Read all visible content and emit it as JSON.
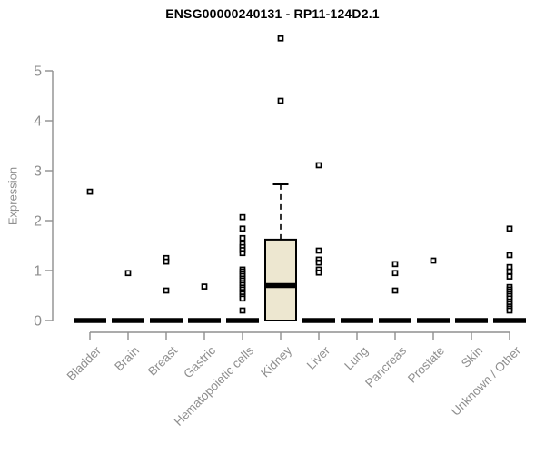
{
  "title": "ENSG00000240131 - RP11-124D2.1",
  "chart_data": {
    "type": "boxplot",
    "title": "ENSG00000240131 - RP11-124D2.1",
    "xlabel": "",
    "ylabel": "Expression",
    "ylim": [
      0,
      5.8
    ],
    "yticks": [
      0,
      1,
      2,
      3,
      4,
      5
    ],
    "grid": false,
    "legend": "none",
    "colors": {
      "box_fill": "#EDE7D0",
      "box_stroke": "#000000",
      "median": "#000000",
      "outlier_stroke": "#000000",
      "axis": "#8f8f8f",
      "tick_label": "#8f8f8f",
      "title_color": "#000000"
    },
    "categories": [
      "Bladder",
      "Brain",
      "Breast",
      "Gastric",
      "Hematopoietic cells",
      "Kidney",
      "Liver",
      "Lung",
      "Pancreas",
      "Prostate",
      "Skin",
      "Unknown / Other"
    ],
    "boxes": [
      {
        "category": "Bladder",
        "q1": 0,
        "median": 0,
        "q3": 0,
        "whisker_low": 0,
        "whisker_high": 0,
        "outliers": [
          2.58
        ]
      },
      {
        "category": "Brain",
        "q1": 0,
        "median": 0,
        "q3": 0,
        "whisker_low": 0,
        "whisker_high": 0,
        "outliers": [
          0.95
        ]
      },
      {
        "category": "Breast",
        "q1": 0,
        "median": 0,
        "q3": 0,
        "whisker_low": 0,
        "whisker_high": 0,
        "outliers": [
          1.25,
          1.18,
          0.6
        ]
      },
      {
        "category": "Gastric",
        "q1": 0,
        "median": 0,
        "q3": 0,
        "whisker_low": 0,
        "whisker_high": 0,
        "outliers": [
          0.68
        ]
      },
      {
        "category": "Hematopoietic cells",
        "q1": 0,
        "median": 0,
        "q3": 0,
        "whisker_low": 0,
        "whisker_high": 0,
        "outliers": [
          2.07,
          1.84,
          1.65,
          1.53,
          1.47,
          1.41,
          1.35,
          1.02,
          0.98,
          0.93,
          0.89,
          0.84,
          0.8,
          0.75,
          0.71,
          0.66,
          0.62,
          0.57,
          0.53,
          0.48,
          0.44,
          0.2
        ]
      },
      {
        "category": "Kidney",
        "q1": 0,
        "median": 0.7,
        "q3": 1.62,
        "whisker_low": 0,
        "whisker_high": 2.73,
        "outliers": [
          5.65,
          4.4
        ]
      },
      {
        "category": "Liver",
        "q1": 0,
        "median": 0,
        "q3": 0,
        "whisker_low": 0,
        "whisker_high": 0,
        "outliers": [
          3.11,
          1.4,
          1.22,
          1.16,
          1.02,
          0.96
        ]
      },
      {
        "category": "Lung",
        "q1": 0,
        "median": 0,
        "q3": 0,
        "whisker_low": 0,
        "whisker_high": 0,
        "outliers": []
      },
      {
        "category": "Pancreas",
        "q1": 0,
        "median": 0,
        "q3": 0,
        "whisker_low": 0,
        "whisker_high": 0,
        "outliers": [
          1.13,
          0.95,
          0.6
        ]
      },
      {
        "category": "Prostate",
        "q1": 0,
        "median": 0,
        "q3": 0,
        "whisker_low": 0,
        "whisker_high": 0,
        "outliers": [
          1.2
        ]
      },
      {
        "category": "Skin",
        "q1": 0,
        "median": 0,
        "q3": 0,
        "whisker_low": 0,
        "whisker_high": 0,
        "outliers": []
      },
      {
        "category": "Unknown / Other",
        "q1": 0,
        "median": 0,
        "q3": 0,
        "whisker_low": 0,
        "whisker_high": 0,
        "outliers": [
          1.84,
          1.31,
          1.07,
          0.98,
          0.88,
          0.67,
          0.62,
          0.58,
          0.53,
          0.49,
          0.44,
          0.38,
          0.33,
          0.28,
          0.24,
          0.2
        ]
      }
    ]
  }
}
